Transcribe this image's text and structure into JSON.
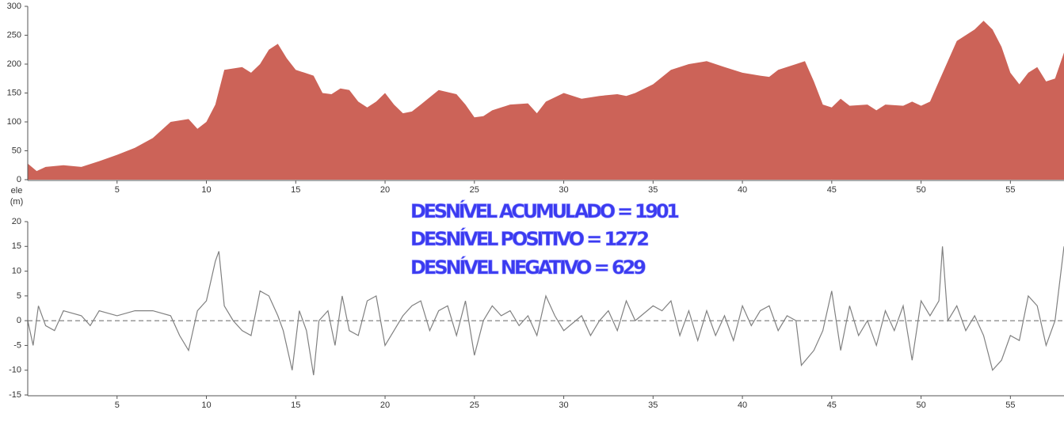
{
  "chart_data": [
    {
      "type": "area",
      "color": "#cc6358",
      "ylabel": "ele",
      "yunit": "(m)",
      "x": [
        0,
        0.5,
        1,
        2,
        3,
        4,
        5,
        6,
        7,
        8,
        9,
        9.5,
        10,
        10.5,
        11,
        12,
        12.5,
        13,
        13.5,
        14,
        14.5,
        15,
        15.5,
        16,
        16.5,
        17,
        17.5,
        18,
        18.5,
        19,
        19.5,
        20,
        20.5,
        21,
        21.5,
        22,
        23,
        24,
        24.5,
        25,
        25.5,
        26,
        27,
        28,
        28.5,
        29,
        30,
        31,
        32,
        33,
        33.5,
        34,
        35,
        36,
        37,
        38,
        39,
        40,
        41,
        41.5,
        42,
        43,
        43.5,
        44,
        44.5,
        45,
        45.5,
        46,
        47,
        47.5,
        48,
        49,
        49.5,
        50,
        50.5,
        51,
        51.5,
        52,
        53,
        53.5,
        54,
        54.5,
        55,
        55.5,
        56,
        56.5,
        57,
        57.5,
        58
      ],
      "values": [
        28,
        15,
        22,
        25,
        22,
        32,
        43,
        55,
        72,
        100,
        105,
        88,
        100,
        130,
        190,
        195,
        185,
        200,
        225,
        235,
        210,
        190,
        185,
        180,
        150,
        148,
        158,
        155,
        135,
        125,
        135,
        150,
        130,
        115,
        118,
        130,
        155,
        148,
        130,
        108,
        110,
        120,
        130,
        132,
        115,
        135,
        150,
        140,
        145,
        148,
        145,
        150,
        165,
        190,
        200,
        205,
        195,
        185,
        180,
        178,
        190,
        200,
        205,
        170,
        130,
        125,
        140,
        128,
        130,
        120,
        130,
        128,
        135,
        128,
        135,
        170,
        205,
        240,
        260,
        275,
        260,
        230,
        185,
        165,
        185,
        195,
        170,
        175,
        220
      ],
      "xlim": [
        0,
        58
      ],
      "ylim": [
        0,
        300
      ],
      "xticks": [
        5,
        10,
        15,
        20,
        25,
        30,
        35,
        40,
        45,
        50,
        55
      ],
      "yticks": [
        0,
        50,
        100,
        150,
        200,
        250,
        300
      ]
    },
    {
      "type": "line",
      "color": "#808080",
      "x": [
        0,
        0.3,
        0.6,
        1,
        1.5,
        2,
        3,
        3.5,
        4,
        5,
        6,
        7,
        8,
        8.5,
        9,
        9.5,
        10,
        10.5,
        10.7,
        11,
        11.5,
        12,
        12.5,
        13,
        13.5,
        14,
        14.3,
        14.8,
        15.2,
        15.6,
        16,
        16.3,
        16.8,
        17.2,
        17.6,
        18,
        18.5,
        19,
        19.5,
        20,
        20.5,
        21,
        21.5,
        22,
        22.5,
        23,
        23.5,
        24,
        24.5,
        25,
        25.5,
        26,
        26.5,
        27,
        27.5,
        28,
        28.5,
        29,
        29.5,
        30,
        31,
        31.5,
        32,
        32.5,
        33,
        33.5,
        34,
        35,
        35.5,
        36,
        36.5,
        37,
        37.5,
        38,
        38.5,
        39,
        39.5,
        40,
        40.5,
        41,
        41.5,
        42,
        42.5,
        43,
        43.3,
        44,
        44.5,
        45,
        45.5,
        46,
        46.5,
        47,
        47.5,
        48,
        48.5,
        49,
        49.5,
        50,
        50.5,
        51,
        51.2,
        51.5,
        52,
        52.5,
        53,
        53.5,
        54,
        54.5,
        55,
        55.5,
        56,
        56.5,
        57,
        57.5,
        58
      ],
      "values": [
        0,
        -5,
        3,
        -1,
        -2,
        2,
        1,
        -1,
        2,
        1,
        2,
        2,
        1,
        -3,
        -6,
        2,
        4,
        12,
        14,
        3,
        0,
        -2,
        -3,
        6,
        5,
        1,
        -2,
        -10,
        2,
        -2,
        -11,
        0,
        2,
        -5,
        5,
        -2,
        -3,
        4,
        5,
        -5,
        -2,
        1,
        3,
        4,
        -2,
        2,
        3,
        -3,
        4,
        -7,
        0,
        3,
        1,
        2,
        -1,
        1,
        -3,
        5,
        1,
        -2,
        1,
        -3,
        0,
        2,
        -2,
        4,
        0,
        3,
        2,
        4,
        -3,
        2,
        -4,
        2,
        -3,
        1,
        -4,
        3,
        -1,
        2,
        3,
        -2,
        1,
        0,
        -9,
        -6,
        -2,
        6,
        -6,
        3,
        -3,
        0,
        -5,
        2,
        -2,
        3,
        -8,
        4,
        1,
        4,
        15,
        0,
        3,
        -2,
        1,
        -3,
        -10,
        -8,
        -3,
        -4,
        5,
        3,
        -5,
        0,
        15
      ],
      "xlim": [
        0,
        58
      ],
      "ylim": [
        -15,
        20
      ],
      "xticks": [
        5,
        10,
        15,
        20,
        25,
        30,
        35,
        40,
        45,
        50,
        55
      ],
      "yticks": [
        -15,
        -10,
        -5,
        0,
        5,
        10,
        15,
        20
      ]
    }
  ],
  "annotations": [
    "DESNÍVEL ACUMULADO = 1901",
    "DESNÍVEL POSITIVO = 1272",
    "DESNÍVEL NEGATIVO = 629"
  ]
}
